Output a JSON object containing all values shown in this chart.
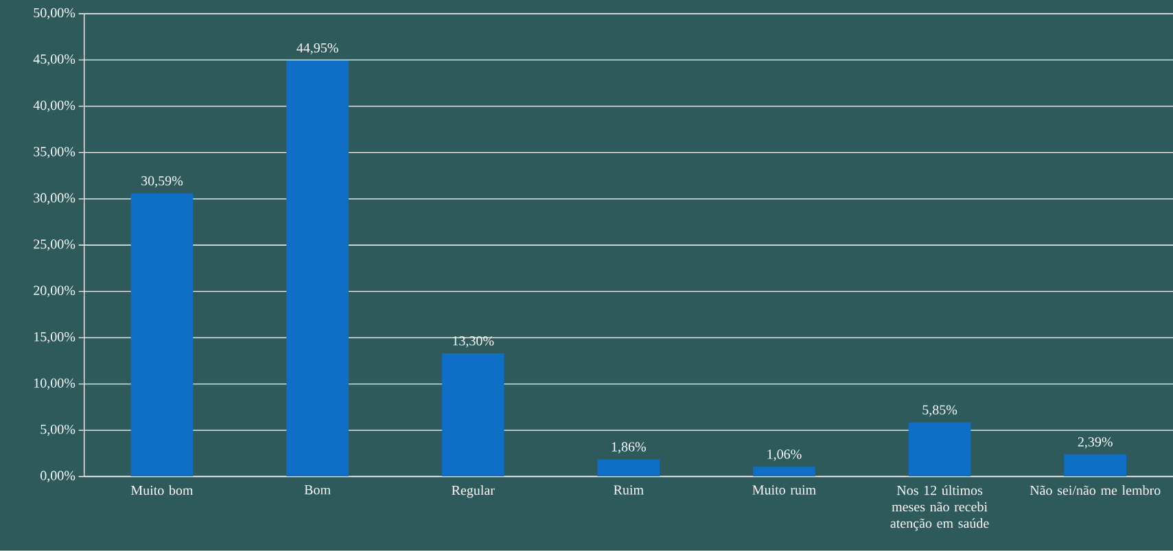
{
  "chart_data": {
    "type": "bar",
    "categories": [
      "Muito bom",
      "Bom",
      "Regular",
      "Ruim",
      "Muito ruim",
      "Nos 12 últimos meses não recebi atenção em saúde",
      "Não sei/não me lembro"
    ],
    "values": [
      30.59,
      44.95,
      13.3,
      1.86,
      1.06,
      5.85,
      2.39
    ],
    "value_labels": [
      "30,59%",
      "44,95%",
      "13,30%",
      "1,86%",
      "1,06%",
      "5,85%",
      "2,39%"
    ],
    "color": "#0f6fc6",
    "ylim": [
      0,
      50
    ],
    "yticks": [
      {
        "value": 0,
        "label": "0,00%"
      },
      {
        "value": 5,
        "label": "5,00%"
      },
      {
        "value": 10,
        "label": "10,00%"
      },
      {
        "value": 15,
        "label": "15,00%"
      },
      {
        "value": 20,
        "label": "20,00%"
      },
      {
        "value": 25,
        "label": "25,00%"
      },
      {
        "value": 30,
        "label": "30,00%"
      },
      {
        "value": 35,
        "label": "35,00%"
      },
      {
        "value": 40,
        "label": "40,00%"
      },
      {
        "value": 45,
        "label": "45,00%"
      },
      {
        "value": 50,
        "label": "50,00%"
      }
    ],
    "grid": "y"
  }
}
